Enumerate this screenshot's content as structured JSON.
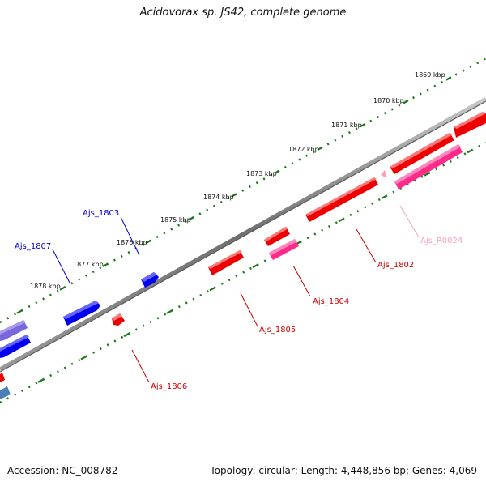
{
  "title": "Acidovorax sp. JS42, complete genome",
  "footer": {
    "accession": "Accession: NC_008782",
    "info": "Topology: circular; Length: 4,448,856 bp; Genes: 4,069"
  },
  "ticks": [
    "1869 kbp",
    "1870 kbp",
    "1871 kbp",
    "1872 kbp",
    "1873 kbp",
    "1874 kbp",
    "1875 kbp",
    "1876 kbp",
    "1877 kbp",
    "1878 kbp"
  ],
  "gene_labels": [
    {
      "id": "g1802",
      "text": "Ajs_1802",
      "color": "#cc0000"
    },
    {
      "id": "g1803",
      "text": "Ajs_1803",
      "color": "#cc0000"
    },
    {
      "id": "g1804",
      "text": "Ajs_1804",
      "color": "#cc0000"
    },
    {
      "id": "g1805",
      "text": "Ajs_1805",
      "color": "#0000cc"
    },
    {
      "id": "g1806",
      "text": "Ajs_1806",
      "color": "#cc0000"
    },
    {
      "id": "g1807",
      "text": "Ajs_1807",
      "color": "#0000cc"
    },
    {
      "id": "gR0024",
      "text": "Ajs_R0024",
      "color": "#f4a0c8"
    }
  ],
  "colors": {
    "forward_gene": "#ee0000",
    "reverse_gene_blue": "#0000ee",
    "rrna_pink": "#ff3399",
    "tick_green": "#1a7a1a",
    "backbone": "#777777"
  }
}
